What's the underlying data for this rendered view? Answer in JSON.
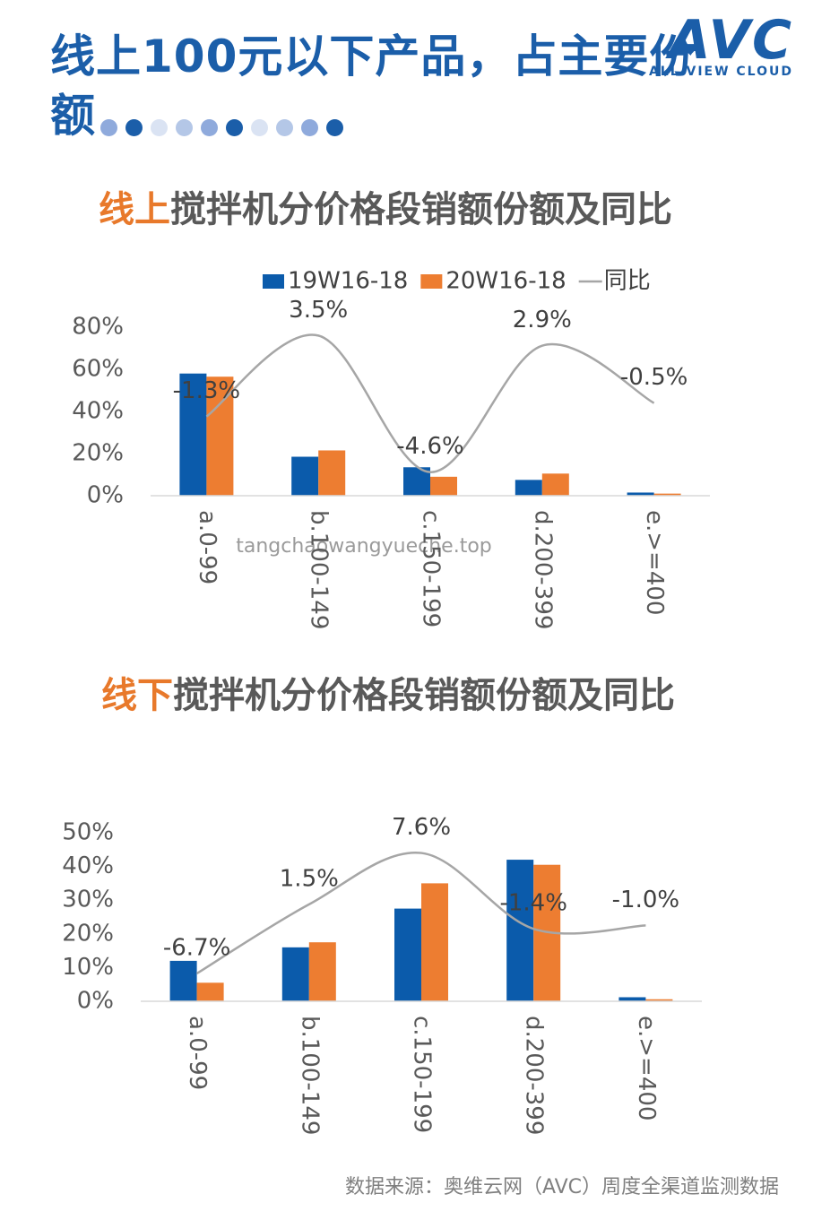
{
  "header": {
    "title": "线上100元以下产品，占主要份额"
  },
  "logo": {
    "text": "AVC",
    "subtitle": "ALL VIEW CLOUD"
  },
  "watermark": "tangchaowangyueche.top",
  "footer": "数据来源：奥维云网（AVC）周度全渠道监测数据",
  "chart_data": [
    {
      "type": "bar",
      "title_prefix": "线上",
      "title": "搅拌机分价格段销额份额及同比",
      "categories": [
        "a.0-99",
        "b.100-149",
        "c.150-199",
        "d.200-399",
        "e.>=400"
      ],
      "series": [
        {
          "name": "19W16-18",
          "color": "#0b5bab",
          "values": [
            58,
            18.5,
            13.5,
            7.5,
            1.5
          ]
        },
        {
          "name": "20W16-18",
          "color": "#ed7d31",
          "values": [
            56.5,
            21.5,
            9,
            10.5,
            1
          ]
        },
        {
          "name": "同比",
          "type": "line",
          "axis": "y2",
          "color": "#a6a6a6",
          "values": [
            -1.3,
            3.5,
            -4.6,
            2.9,
            -0.5
          ],
          "value_labels": [
            "-1.3%",
            "3.5%",
            "-4.6%",
            "2.9%",
            "-0.5%"
          ]
        }
      ],
      "ylim": [
        0,
        80
      ],
      "yticks": [
        {
          "value": 0,
          "label": "0%"
        },
        {
          "value": 20,
          "label": "20%"
        },
        {
          "value": 40,
          "label": "40%"
        },
        {
          "value": 60,
          "label": "60%"
        },
        {
          "value": 80,
          "label": "80%"
        }
      ],
      "y2lim": [
        -6,
        4
      ],
      "legend": true,
      "grid": false
    },
    {
      "type": "bar",
      "title_prefix": "线下",
      "title": "搅拌机分价格段销额份额及同比",
      "categories": [
        "a.0-99",
        "b.100-149",
        "c.150-199",
        "d.200-399",
        "e.>=400"
      ],
      "series": [
        {
          "color": "#0b5bab",
          "values": [
            12,
            16,
            27.5,
            42,
            1.2
          ]
        },
        {
          "color": "#ed7d31",
          "values": [
            5.5,
            17.5,
            35,
            40.5,
            0.6
          ]
        },
        {
          "type": "line",
          "axis": "y2",
          "color": "#a6a6a6",
          "values": [
            -6.7,
            1.5,
            7.6,
            -1.4,
            -1.0
          ],
          "value_labels": [
            "-6.7%",
            "1.5%",
            "7.6%",
            "-1.4%",
            "-1.0%"
          ]
        }
      ],
      "ylim": [
        0,
        50
      ],
      "yticks": [
        {
          "value": 0,
          "label": "0%"
        },
        {
          "value": 10,
          "label": "10%"
        },
        {
          "value": 20,
          "label": "20%"
        },
        {
          "value": 30,
          "label": "30%"
        },
        {
          "value": 40,
          "label": "40%"
        },
        {
          "value": 50,
          "label": "50%"
        }
      ],
      "y2lim": [
        -10,
        10
      ],
      "legend": false,
      "grid": false
    }
  ]
}
